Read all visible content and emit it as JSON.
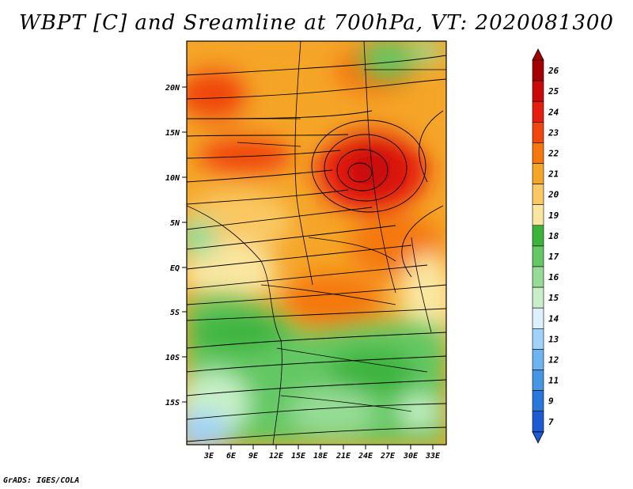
{
  "title": "WBPT [C] and Sreamline at 700hPa, VT: 2020081300",
  "footer": "GrADS: IGES/COLA",
  "map": {
    "lat_ticks": [
      "20N",
      "15N",
      "10N",
      "5N",
      "EQ",
      "5S",
      "10S",
      "15S"
    ],
    "lon_ticks": [
      "3E",
      "6E",
      "9E",
      "12E",
      "15E",
      "18E",
      "21E",
      "24E",
      "27E",
      "30E",
      "33E"
    ]
  },
  "colorbar": {
    "labels": [
      "26",
      "25",
      "24",
      "23",
      "22",
      "21",
      "20",
      "19",
      "18",
      "17",
      "16",
      "15",
      "14",
      "13",
      "12",
      "11",
      "9",
      "7"
    ],
    "colors": [
      "#a50000",
      "#c80a0a",
      "#e61e0f",
      "#f0460f",
      "#f5780f",
      "#f5a528",
      "#fac864",
      "#fae6a0",
      "#3cb43c",
      "#64c864",
      "#96dc96",
      "#c8f0c8",
      "#dcf0ff",
      "#a0d2fa",
      "#6eb4f0",
      "#4696e6",
      "#2878dc",
      "#1e5ad2"
    ]
  }
}
